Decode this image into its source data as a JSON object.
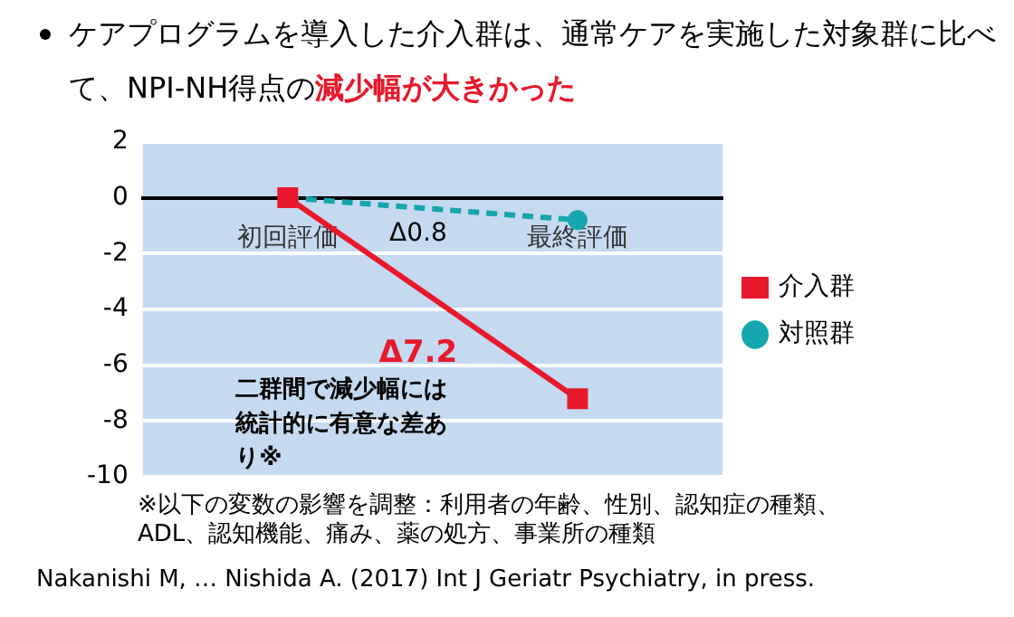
{
  "chart_data": {
    "type": "line",
    "title": "ケアプログラムを導入した介入群は、通常ケアを実施した対象群に比べて、NPI-NH得点の",
    "subtitle": "減少幅が大きかった",
    "categories": [
      "初回評価",
      "最終評価"
    ],
    "series": [
      {
        "name": "介入群",
        "color": "#e8192c",
        "values": [
          0,
          -7.2
        ],
        "marker": "square",
        "line_style": "solid"
      },
      {
        "name": "対照群",
        "color": "#16a6ad",
        "values": [
          0,
          -0.8
        ],
        "marker": "circle",
        "line_style": "dashed"
      }
    ],
    "ylim": [
      -10,
      2
    ],
    "yticks": [
      -10,
      -8,
      -6,
      -4,
      -2,
      0,
      2
    ],
    "grid": "y",
    "legend": "right",
    "annotations": [
      "Δ0.8",
      "Δ7.2",
      "二群間で減少幅には統計的に有意な差あり※",
      "※以下の変数の影響を調整：利用者の年齢、性別、認知症の種類、\nADL、認知機能、痛み、薬の処方、事業所の種類",
      "Nakanishi M, … Nishida A. (2017) Int J Geriatr Psychiatry, in press."
    ]
  }
}
